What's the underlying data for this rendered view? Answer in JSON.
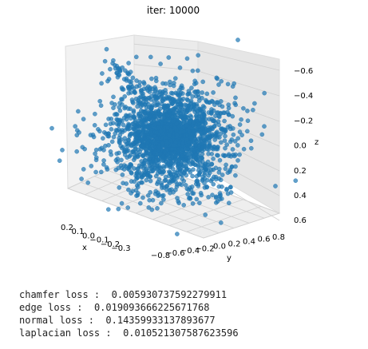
{
  "chart_data": {
    "type": "scatter",
    "projection": "3d",
    "title": "iter: 10000",
    "xlabel": "x",
    "ylabel": "y",
    "zlabel": "z",
    "x_ticks": [
      "0.2",
      "0.1",
      "0.0",
      "−0.1",
      "−0.2",
      "−0.3"
    ],
    "y_ticks": [
      "−0.8",
      "−0.6",
      "−0.4",
      "−0.2",
      "0.0",
      "0.2",
      "0.4",
      "0.6",
      "0.8"
    ],
    "z_ticks": [
      "−0.6",
      "−0.4",
      "−0.2",
      "0.0",
      "0.2",
      "0.4",
      "0.6"
    ],
    "xlim": [
      -0.3,
      0.25
    ],
    "ylim": [
      -0.9,
      0.9
    ],
    "zlim": [
      -0.6,
      0.6
    ],
    "z_axis_inverted": true,
    "grid": true,
    "marker_color": "#1f77b4",
    "series": [
      {
        "description": "point cloud, approx. spherical blob centered near origin",
        "center": [
          0.0,
          0.0,
          0.0
        ],
        "approx_radius": [
          0.12,
          0.45,
          0.4
        ]
      }
    ]
  },
  "losses": [
    {
      "label": "chamfer loss",
      "value": "0.005930737592279911"
    },
    {
      "label": "edge loss",
      "value": "0.019093666225671768"
    },
    {
      "label": "normal loss",
      "value": "0.14359933137893677"
    },
    {
      "label": "laplacian loss",
      "value": "0.010521307587623596"
    }
  ]
}
